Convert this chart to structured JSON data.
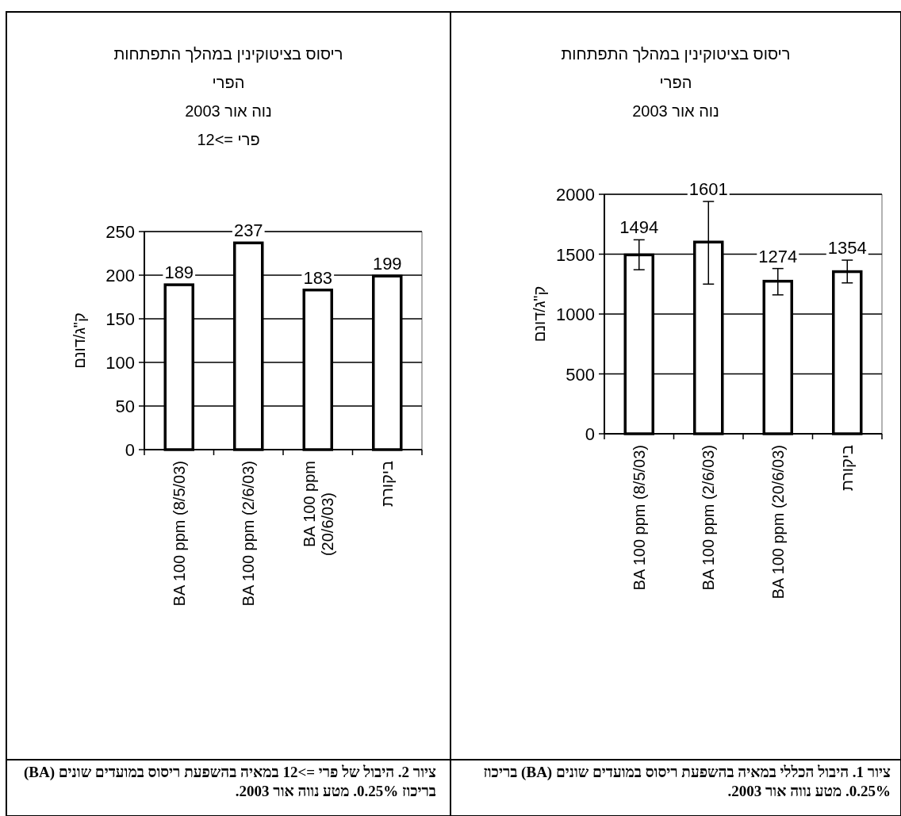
{
  "chart_data": [
    {
      "type": "bar",
      "title": "ריסוס בציטוקינין במהלך התפתחות\nהפרי\nנוה אור 2003",
      "ylabel": "ק\"ג/דונם",
      "categories": [
        "BA 100 ppm (8/5/03)",
        "BA 100 ppm (2/6/03)",
        "BA 100 ppm (20/6/03)",
        "ביקורת"
      ],
      "values": [
        1494,
        1601,
        1274,
        1354
      ],
      "color": "#ffffff",
      "errors": [
        [
          1370,
          1620
        ],
        [
          1250,
          1940
        ],
        [
          1160,
          1380
        ],
        [
          1260,
          1450
        ]
      ],
      "ylim": [
        0,
        2000
      ],
      "yticks": [
        0,
        500,
        1000,
        1500,
        2000
      ],
      "grid": "y",
      "data_labels": true,
      "annotations": [
        "ציור 1. היבול הכללי במאיה בהשפעת ריסוס במועדים שונים (BA) בריכוז 0.25%. מטע נווה אור 2003."
      ]
    },
    {
      "type": "bar",
      "title": "ריסוס בציטוקינין במהלך התפתחות\nהפרי\nנוה אור 2003\nפרי =>12",
      "ylabel": "ק\"ג/דונם",
      "categories": [
        "BA 100 ppm (8/5/03)",
        "BA 100 ppm (2/6/03)",
        "BA 100 ppm\n(20/6/03)",
        "ביקורת"
      ],
      "values": [
        189,
        237,
        183,
        199
      ],
      "color": "#ffffff",
      "ylim": [
        0,
        250
      ],
      "yticks": [
        0,
        50,
        100,
        150,
        200,
        250
      ],
      "grid": "y",
      "data_labels": true,
      "annotations": [
        "ציור 2. היבול של פרי =>12 במאיה בהשפעת ריסוס במועדים שונים (BA) בריכוז 0.25%. מטע נווה אור 2003."
      ]
    }
  ]
}
